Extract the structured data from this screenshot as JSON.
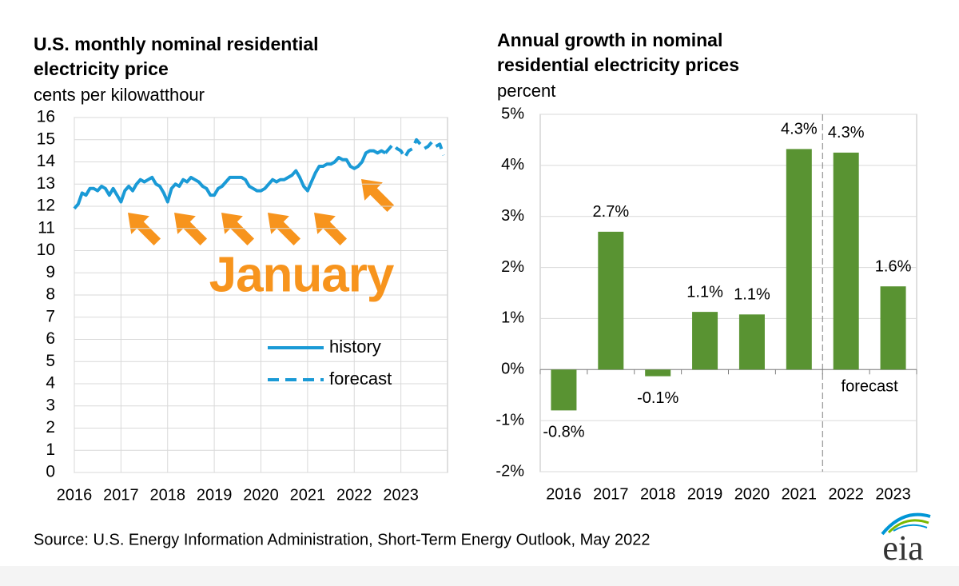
{
  "chart_data": [
    {
      "type": "line",
      "title": "U.S. monthly nominal residential electricity price",
      "subtitle": "cents per kilowatthour",
      "categories": [
        "2016",
        null,
        null,
        null,
        null,
        null,
        null,
        null,
        null,
        null,
        null,
        null,
        "2017",
        null,
        null,
        null,
        null,
        null,
        null,
        null,
        null,
        null,
        null,
        null,
        "2018",
        null,
        null,
        null,
        null,
        null,
        null,
        null,
        null,
        null,
        null,
        null,
        "2019",
        null,
        null,
        null,
        null,
        null,
        null,
        null,
        null,
        null,
        null,
        null,
        "2020",
        null,
        null,
        null,
        null,
        null,
        null,
        null,
        null,
        null,
        null,
        null,
        "2021",
        null,
        null,
        null,
        null,
        null,
        null,
        null,
        null,
        null,
        null,
        null,
        "2022",
        null,
        null,
        null,
        null,
        null,
        null,
        null,
        null,
        null,
        null,
        null,
        "2023",
        null,
        null,
        null,
        null,
        null,
        null,
        null,
        null,
        null,
        null,
        null
      ],
      "series": [
        {
          "name": "history",
          "color": "#1a9ad6",
          "dashed": false,
          "values": [
            11.9,
            12.1,
            12.6,
            12.5,
            12.8,
            12.8,
            12.7,
            12.9,
            12.8,
            12.5,
            12.8,
            12.5,
            12.2,
            12.7,
            12.9,
            12.7,
            13.0,
            13.2,
            13.1,
            13.2,
            13.3,
            13.0,
            12.9,
            12.6,
            12.2,
            12.8,
            13.0,
            12.9,
            13.2,
            13.1,
            13.3,
            13.2,
            13.1,
            12.9,
            12.8,
            12.5,
            12.5,
            12.8,
            12.9,
            13.1,
            13.3,
            13.3,
            13.3,
            13.3,
            13.2,
            12.9,
            12.8,
            12.7,
            12.7,
            12.8,
            13.0,
            13.2,
            13.1,
            13.2,
            13.2,
            13.3,
            13.4,
            13.6,
            13.3,
            12.9,
            12.7,
            13.1,
            13.5,
            13.8,
            13.8,
            13.9,
            13.9,
            14.0,
            14.2,
            14.1,
            14.1,
            13.8,
            13.7,
            13.8,
            14.0,
            14.4,
            14.5,
            14.5,
            14.4,
            14.5,
            14.4,
            null,
            null,
            null,
            null,
            null,
            null,
            null,
            null,
            null,
            null,
            null,
            null,
            null,
            null,
            null
          ]
        },
        {
          "name": "forecast",
          "color": "#1a9ad6",
          "dashed": true,
          "values": [
            null,
            null,
            null,
            null,
            null,
            null,
            null,
            null,
            null,
            null,
            null,
            null,
            null,
            null,
            null,
            null,
            null,
            null,
            null,
            null,
            null,
            null,
            null,
            null,
            null,
            null,
            null,
            null,
            null,
            null,
            null,
            null,
            null,
            null,
            null,
            null,
            null,
            null,
            null,
            null,
            null,
            null,
            null,
            null,
            null,
            null,
            null,
            null,
            null,
            null,
            null,
            null,
            null,
            null,
            null,
            null,
            null,
            null,
            null,
            null,
            null,
            null,
            null,
            null,
            null,
            null,
            null,
            null,
            null,
            null,
            null,
            null,
            null,
            null,
            null,
            null,
            null,
            null,
            null,
            null,
            14.4,
            14.6,
            14.8,
            14.6,
            14.5,
            14.2,
            14.5,
            14.6,
            15.0,
            14.8,
            14.6,
            14.7,
            14.9,
            14.7,
            14.8,
            14.3
          ]
        }
      ],
      "ylim": [
        0,
        16
      ],
      "yticks": [
        0,
        1,
        2,
        3,
        4,
        5,
        6,
        7,
        8,
        9,
        10,
        11,
        12,
        13,
        14,
        15,
        16
      ],
      "grid": true,
      "annotation": "January",
      "annotation_color": "#f7941d"
    },
    {
      "type": "bar",
      "title": "Annual growth in nominal residential electricity prices",
      "subtitle": "percent",
      "categories": [
        "2016",
        "2017",
        "2018",
        "2019",
        "2020",
        "2021",
        "2022",
        "2023"
      ],
      "values": [
        -0.8,
        2.7,
        -0.13,
        1.13,
        1.08,
        4.32,
        4.25,
        1.63
      ],
      "value_labels": [
        "-0.8%",
        "2.7%",
        "-0.1%",
        "1.1%",
        "1.1%",
        "4.3%",
        "4.3%",
        "1.6%"
      ],
      "color": "#599332",
      "ylim": [
        -2,
        5
      ],
      "yticks": [
        {
          "value": -2,
          "label": "-2%"
        },
        {
          "value": -1,
          "label": "-1%"
        },
        {
          "value": 0,
          "label": "0%"
        },
        {
          "value": 1,
          "label": "1%"
        },
        {
          "value": 2,
          "label": "2%"
        },
        {
          "value": 3,
          "label": "3%"
        },
        {
          "value": 4,
          "label": "4%"
        },
        {
          "value": 5,
          "label": "5%"
        }
      ],
      "grid": true,
      "annotation": "forecast"
    }
  ],
  "source": "Source: U.S. Energy Information Administration, Short-Term Energy Outlook, May 2022",
  "logo": "eia"
}
